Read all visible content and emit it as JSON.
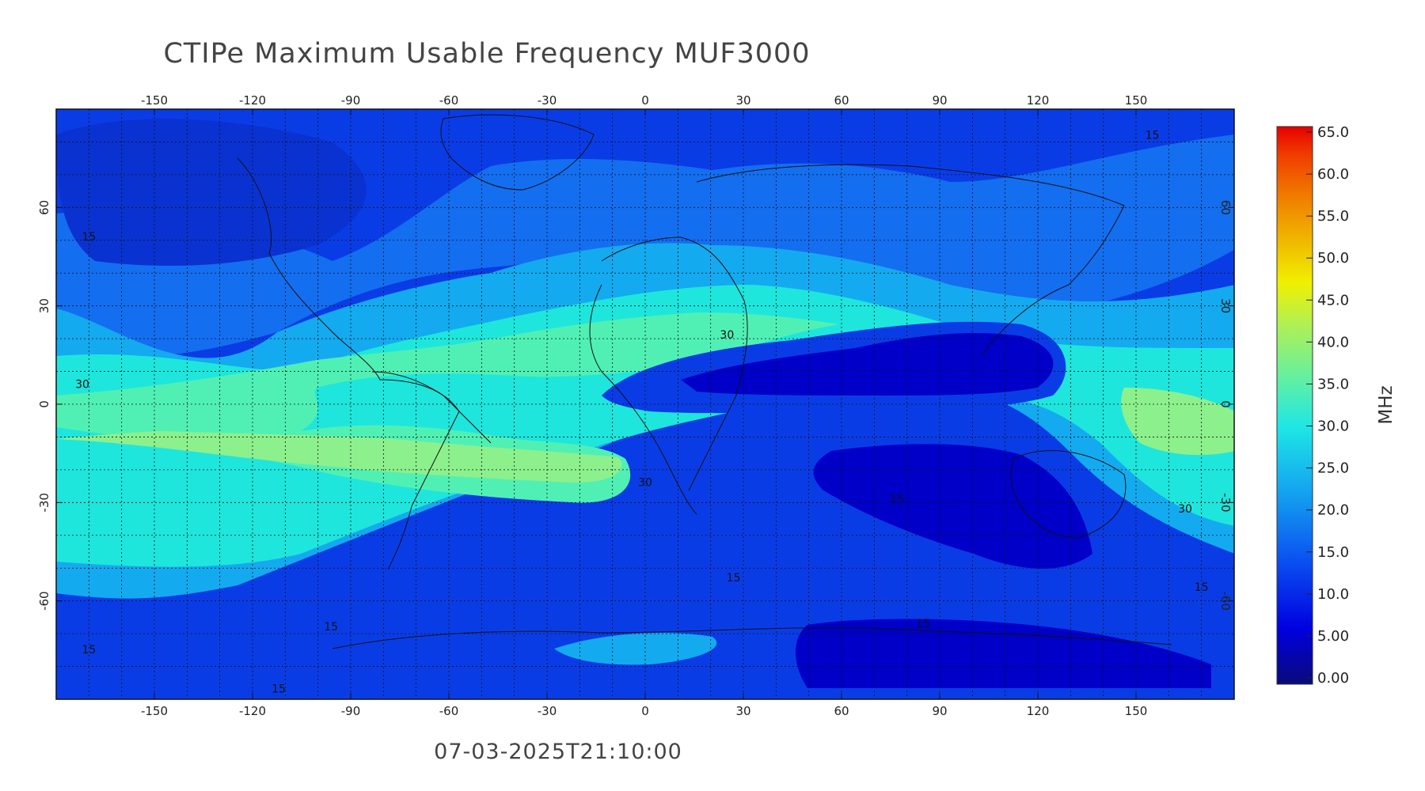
{
  "title": "CTIPe Maximum Usable Frequency MUF3000",
  "timestamp": "07-03-2025T21:10:00",
  "map": {
    "projection": "equirectangular",
    "lon_range": [
      -180,
      180
    ],
    "lat_range": [
      -90,
      90
    ],
    "lon_ticks": [
      -150,
      -120,
      -90,
      -60,
      -30,
      0,
      30,
      60,
      90,
      120,
      150
    ],
    "lat_ticks": [
      60,
      30,
      0,
      -30,
      -60
    ],
    "gridlines": "dotted",
    "coastlines": true
  },
  "colorbar": {
    "unit": "MHz",
    "min": 0,
    "max": 65,
    "tick_labels": [
      "65.0",
      "60.0",
      "55.0",
      "50.0",
      "45.0",
      "40.0",
      "35.0",
      "30.0",
      "25.0",
      "20.0",
      "15.0",
      "10.0",
      "5.00",
      "0.00"
    ]
  },
  "contour_labels": [
    {
      "text": "15",
      "lon": -170,
      "lat": 50
    },
    {
      "text": "30",
      "lon": -172,
      "lat": 5
    },
    {
      "text": "30",
      "lon": 25,
      "lat": 20
    },
    {
      "text": "30",
      "lon": 0,
      "lat": -25
    },
    {
      "text": "15",
      "lon": 77,
      "lat": -30
    },
    {
      "text": "15",
      "lon": 27,
      "lat": -54
    },
    {
      "text": "15",
      "lon": -96,
      "lat": -69
    },
    {
      "text": "15",
      "lon": -170,
      "lat": -76
    },
    {
      "text": "15",
      "lon": 85,
      "lat": -68
    },
    {
      "text": "15",
      "lon": -112,
      "lat": -88
    },
    {
      "text": "15",
      "lon": 155,
      "lat": 81
    },
    {
      "text": "30",
      "lon": 165,
      "lat": -33
    },
    {
      "text": "15",
      "lon": 170,
      "lat": -57
    }
  ],
  "colors": {
    "band_lt10": "#0000c8",
    "band_10_15": "#0a3ce6",
    "band_15_20": "#146ef0",
    "band_20_25": "#14aaf0",
    "band_25_30": "#1ee6dc",
    "band_30_35": "#50f0b4",
    "band_35_40": "#8cf08c"
  }
}
